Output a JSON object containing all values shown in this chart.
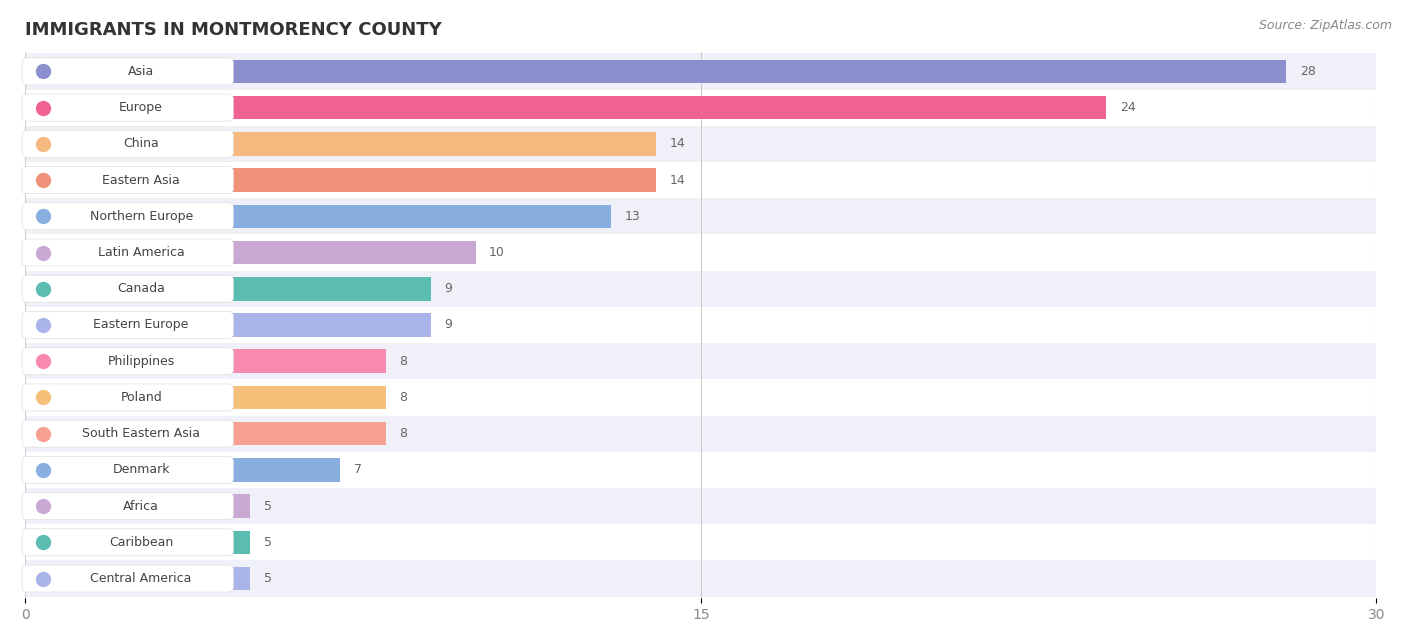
{
  "title": "IMMIGRANTS IN MONTMORENCY COUNTY",
  "source": "Source: ZipAtlas.com",
  "categories": [
    "Asia",
    "Europe",
    "China",
    "Eastern Asia",
    "Northern Europe",
    "Latin America",
    "Canada",
    "Eastern Europe",
    "Philippines",
    "Poland",
    "South Eastern Asia",
    "Denmark",
    "Africa",
    "Caribbean",
    "Central America"
  ],
  "values": [
    28,
    24,
    14,
    14,
    13,
    10,
    9,
    9,
    8,
    8,
    8,
    7,
    5,
    5,
    5
  ],
  "bar_colors": [
    "#8b8fce",
    "#f06292",
    "#f5b97f",
    "#f0917a",
    "#89aee0",
    "#c9a8d4",
    "#5bbcb0",
    "#aab4e8",
    "#f88ab0",
    "#f5c07a",
    "#f5a090",
    "#89aee0",
    "#c9a8d4",
    "#5bbcb0",
    "#aab4e8"
  ],
  "xlim": [
    0,
    30
  ],
  "xticks": [
    0,
    15,
    30
  ],
  "background_color": "#ffffff",
  "row_even_color": "#f0f0f8",
  "row_odd_color": "#ffffff",
  "bar_height": 0.65,
  "title_fontsize": 13,
  "source_fontsize": 9,
  "label_fontsize": 9,
  "value_fontsize": 9
}
